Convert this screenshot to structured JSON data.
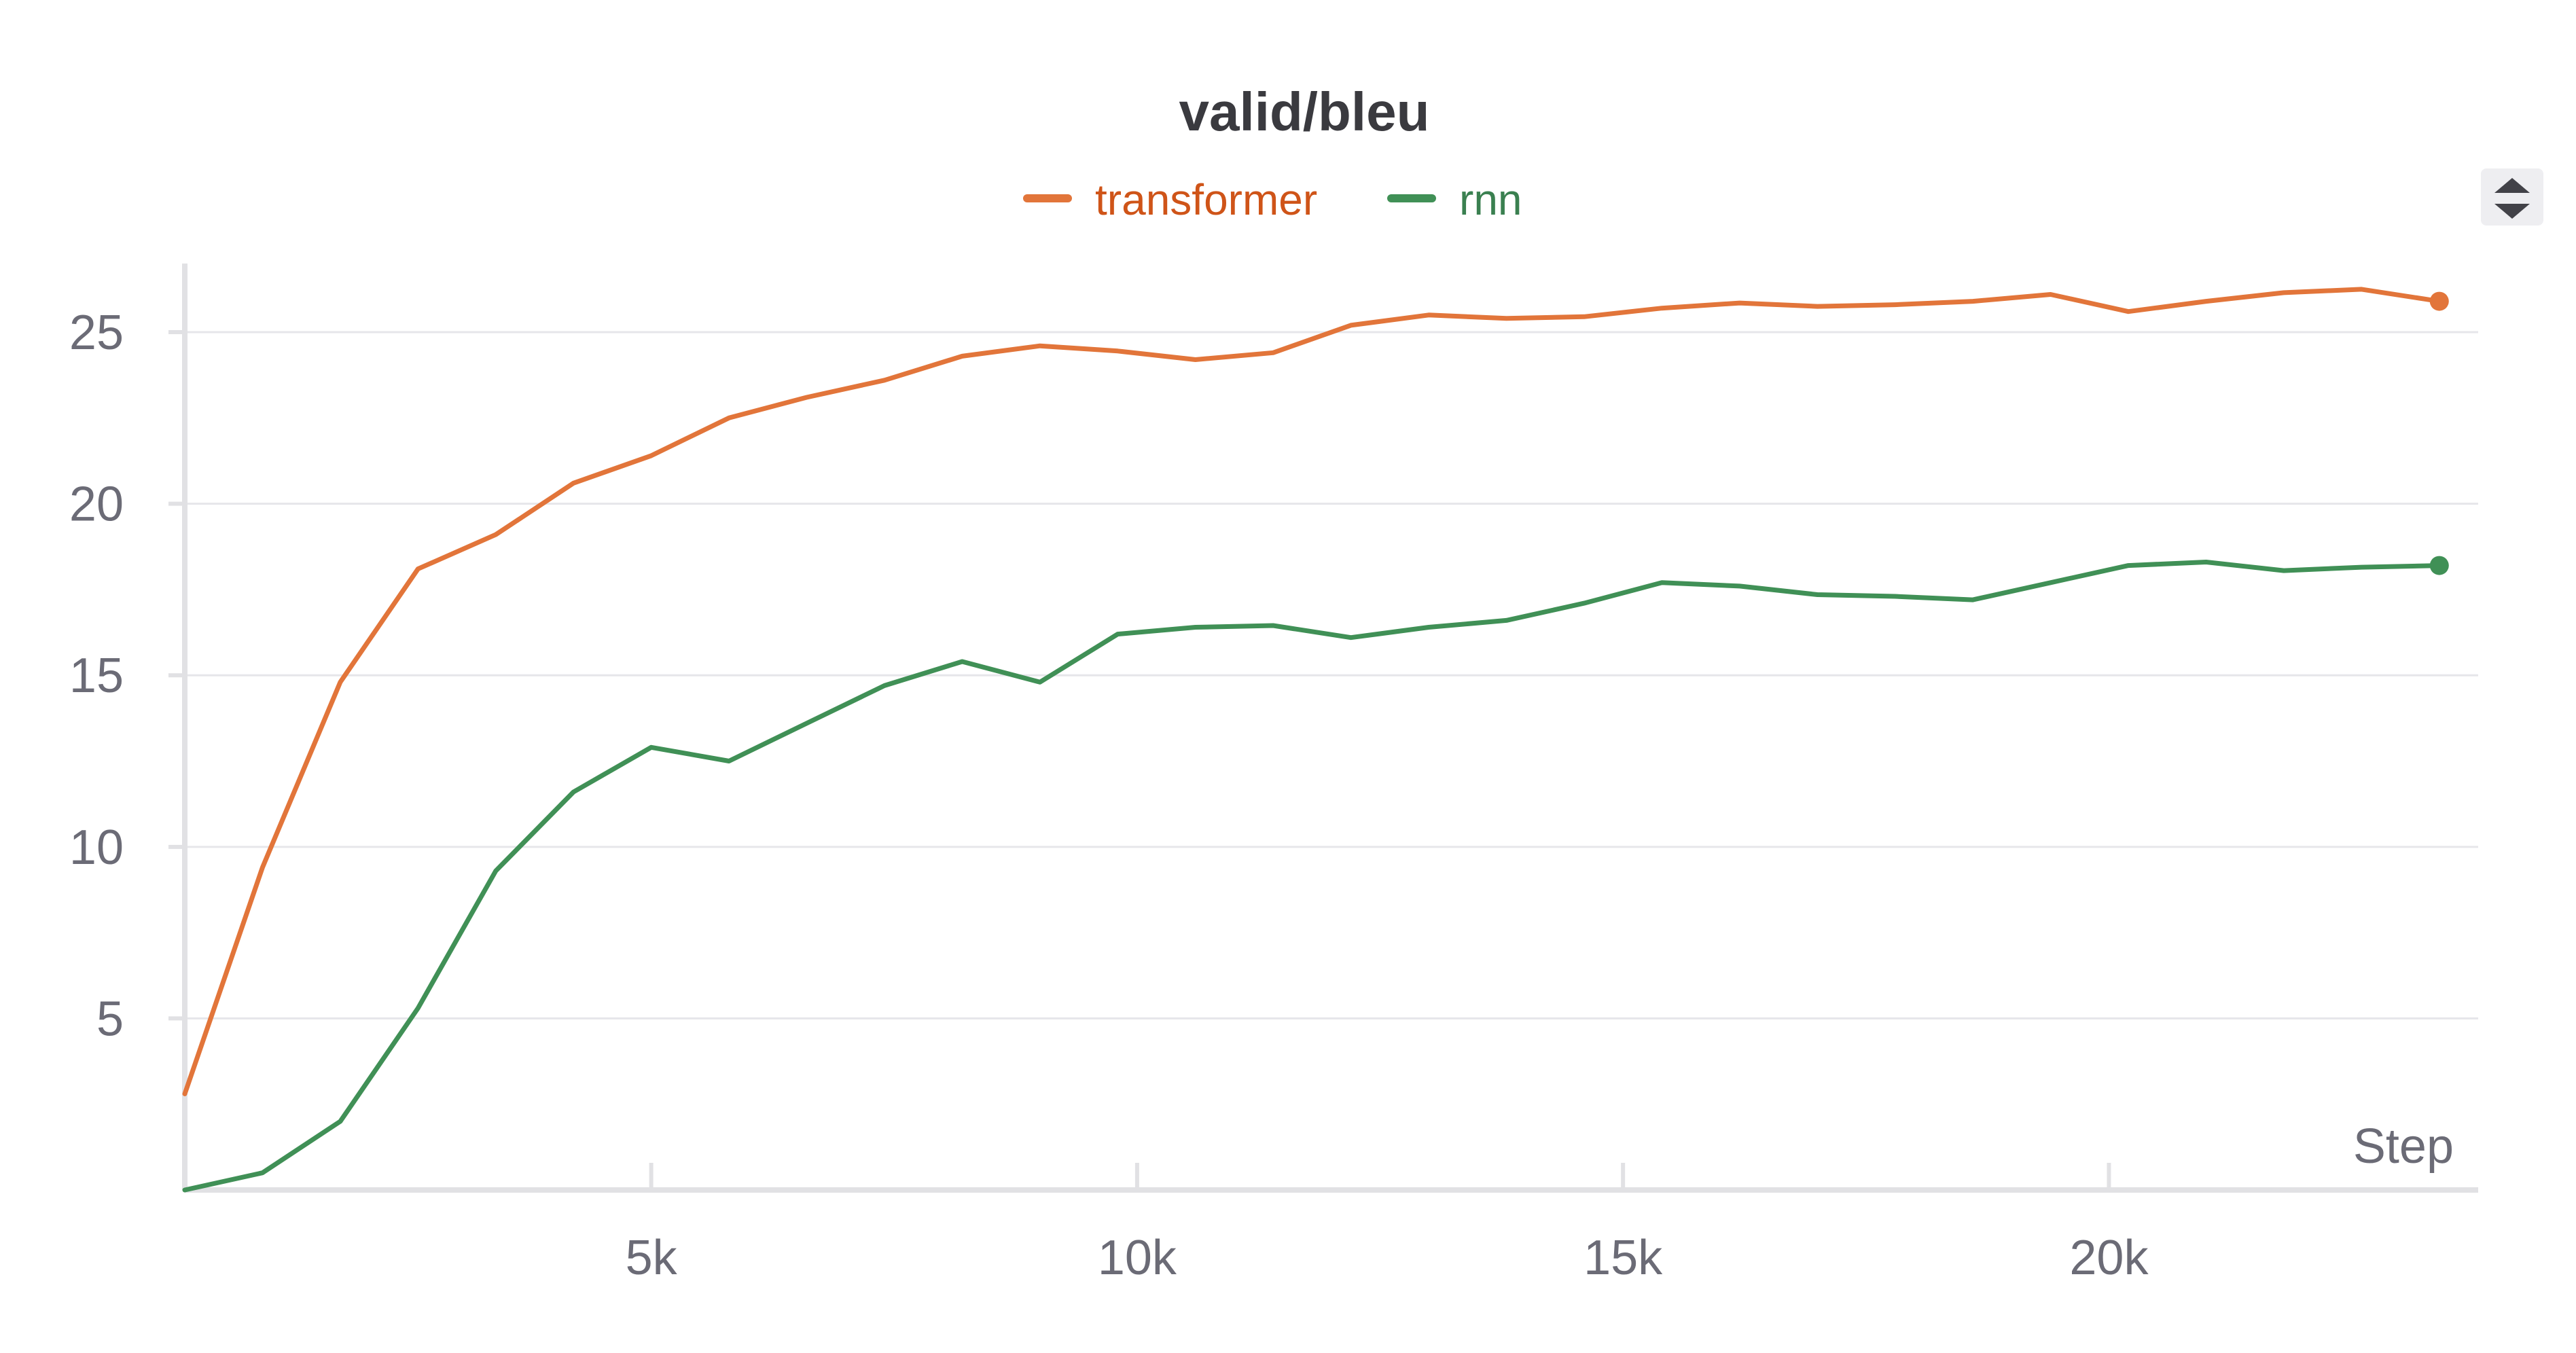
{
  "chart_data": {
    "type": "line",
    "title": "valid/bleu",
    "xlabel": "Step",
    "ylabel": "",
    "xlim": [
      200,
      23800
    ],
    "ylim": [
      0,
      27
    ],
    "xticks": [
      5000,
      10000,
      15000,
      20000
    ],
    "xtick_labels": [
      "5k",
      "10k",
      "15k",
      "20k"
    ],
    "yticks": [
      5,
      10,
      15,
      20,
      25
    ],
    "ytick_labels": [
      "5",
      "10",
      "15",
      "20",
      "25"
    ],
    "grid": true,
    "legend_position": "top-center",
    "series": [
      {
        "name": "transformer",
        "color": "#e2753a",
        "label_color": "#cf5418",
        "x": [
          200,
          1000,
          1800,
          2600,
          3400,
          4200,
          5000,
          5800,
          6600,
          7400,
          8200,
          9000,
          9800,
          10600,
          11400,
          12200,
          13000,
          13800,
          14600,
          15400,
          16200,
          17000,
          17800,
          18600,
          19400,
          20200,
          21000,
          21800,
          22600,
          23400
        ],
        "y": [
          2.8,
          9.4,
          14.8,
          18.1,
          19.1,
          20.6,
          21.4,
          22.5,
          23.1,
          23.6,
          24.3,
          24.6,
          24.45,
          24.2,
          24.4,
          25.2,
          25.5,
          25.4,
          25.45,
          25.7,
          25.85,
          25.75,
          25.8,
          25.9,
          26.1,
          25.6,
          25.9,
          26.15,
          26.25,
          25.9
        ]
      },
      {
        "name": "rnn",
        "color": "#409056",
        "label_color": "#3a8050",
        "x": [
          200,
          1000,
          1800,
          2600,
          3400,
          4200,
          5000,
          5800,
          6600,
          7400,
          8200,
          9000,
          9800,
          10600,
          11400,
          12200,
          13000,
          13800,
          14600,
          15400,
          16200,
          17000,
          17800,
          18600,
          19400,
          20200,
          21000,
          21800,
          22600,
          23400
        ],
        "y": [
          0.0,
          0.5,
          2.0,
          5.3,
          9.3,
          11.6,
          12.9,
          12.5,
          13.6,
          14.7,
          15.4,
          14.8,
          16.2,
          16.4,
          16.45,
          16.1,
          16.4,
          16.6,
          17.1,
          17.7,
          17.6,
          17.35,
          17.3,
          17.2,
          17.7,
          18.2,
          18.3,
          18.05,
          18.15,
          18.2
        ]
      }
    ],
    "toolbar_icon": "sort-arrows-icon"
  }
}
